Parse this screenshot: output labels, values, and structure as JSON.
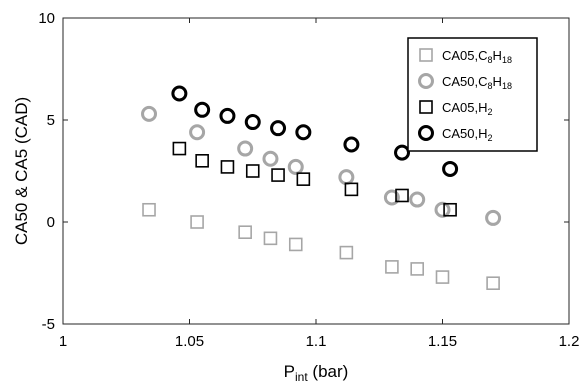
{
  "chart_data": {
    "type": "scatter",
    "xlabel": {
      "main": "P",
      "sub": "int",
      "rest": " (bar)"
    },
    "ylabel": "CA50 & CA5 (CAD)",
    "xlim": [
      1,
      1.2
    ],
    "ylim": [
      -5,
      10
    ],
    "xticks": [
      1,
      1.05,
      1.1,
      1.15,
      1.2
    ],
    "xtick_labels": [
      "1",
      "1.05",
      "1.1",
      "1.15",
      "1.2"
    ],
    "yticks": [
      -5,
      0,
      5,
      10
    ],
    "ytick_labels": [
      "-5",
      "0",
      "5",
      "10"
    ],
    "grid": false,
    "legend_position": "top-right",
    "series": [
      {
        "name": "CA05,C8H18",
        "legend": {
          "parts": [
            [
              "CA05,C",
              ""
            ],
            [
              "8",
              "sub"
            ],
            [
              "H",
              ""
            ],
            [
              "18",
              "sub"
            ]
          ]
        },
        "marker": "square",
        "color": "#a6a6a6",
        "x": [
          1.034,
          1.053,
          1.072,
          1.082,
          1.092,
          1.112,
          1.13,
          1.14,
          1.15,
          1.17
        ],
        "y": [
          0.6,
          0.0,
          -0.5,
          -0.8,
          -1.1,
          -1.5,
          -2.2,
          -2.3,
          -2.7,
          -3.0
        ]
      },
      {
        "name": "CA50,C8H18",
        "legend": {
          "parts": [
            [
              "CA50,C",
              ""
            ],
            [
              "8",
              "sub"
            ],
            [
              "H",
              ""
            ],
            [
              "18",
              "sub"
            ]
          ]
        },
        "marker": "circle",
        "color": "#a6a6a6",
        "x": [
          1.034,
          1.053,
          1.072,
          1.082,
          1.092,
          1.112,
          1.13,
          1.14,
          1.15,
          1.17
        ],
        "y": [
          5.3,
          4.4,
          3.6,
          3.1,
          2.7,
          2.2,
          1.2,
          1.1,
          0.6,
          0.2
        ]
      },
      {
        "name": "CA05,H2",
        "legend": {
          "parts": [
            [
              "CA05,H",
              ""
            ],
            [
              "2",
              "sub"
            ]
          ]
        },
        "marker": "square",
        "color": "#000000",
        "x": [
          1.046,
          1.055,
          1.065,
          1.075,
          1.085,
          1.095,
          1.114,
          1.134,
          1.153
        ],
        "y": [
          3.6,
          3.0,
          2.7,
          2.5,
          2.3,
          2.1,
          1.6,
          1.3,
          0.6
        ]
      },
      {
        "name": "CA50,H2",
        "legend": {
          "parts": [
            [
              "CA50,H",
              ""
            ],
            [
              "2",
              "sub"
            ]
          ]
        },
        "marker": "circle",
        "color": "#000000",
        "x": [
          1.046,
          1.055,
          1.065,
          1.075,
          1.085,
          1.095,
          1.114,
          1.134,
          1.153
        ],
        "y": [
          6.3,
          5.5,
          5.2,
          4.9,
          4.6,
          4.4,
          3.8,
          3.4,
          2.6
        ]
      }
    ]
  }
}
